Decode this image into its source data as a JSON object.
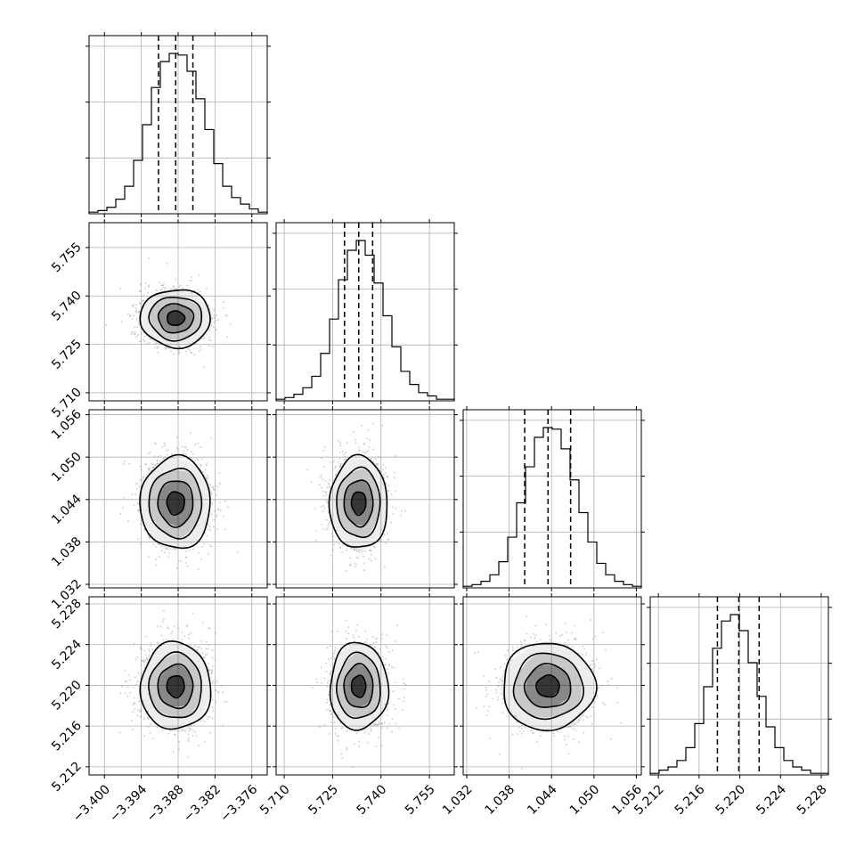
{
  "chart_data": {
    "type": "corner",
    "title": "",
    "grid": true,
    "params": [
      {
        "range": [
          -3.4025,
          -3.3735
        ],
        "ticks": [
          "−3.400",
          "−3.394",
          "−3.388",
          "−3.382",
          "−3.376"
        ],
        "tick_values": [
          -3.4,
          -3.394,
          -3.388,
          -3.382,
          -3.376
        ],
        "quantiles": [
          -3.3912,
          -3.3884,
          -3.3856
        ],
        "mean": -3.3884,
        "sd": 0.0028
      },
      {
        "range": [
          5.7075,
          5.7627
        ],
        "ticks": [
          "5.710",
          "5.725",
          "5.740",
          "5.755"
        ],
        "tick_values": [
          5.71,
          5.725,
          5.74,
          5.755
        ],
        "quantiles": [
          5.7287,
          5.7331,
          5.7374
        ],
        "mean": 5.7331,
        "sd": 0.0044
      },
      {
        "range": [
          1.0315,
          1.0567
        ],
        "ticks": [
          "1.032",
          "1.038",
          "1.044",
          "1.050",
          "1.056"
        ],
        "tick_values": [
          1.032,
          1.038,
          1.044,
          1.05,
          1.056
        ],
        "quantiles": [
          1.0402,
          1.0435,
          1.0467
        ],
        "mean": 1.0435,
        "sd": 0.0032
      },
      {
        "range": [
          5.2112,
          5.2287
        ],
        "ticks": [
          "5.212",
          "5.216",
          "5.220",
          "5.224",
          "5.228"
        ],
        "tick_values": [
          5.212,
          5.216,
          5.22,
          5.224,
          5.228
        ],
        "quantiles": [
          5.2178,
          5.2199,
          5.2219
        ],
        "mean": 5.2199,
        "sd": 0.0021
      }
    ],
    "histograms": [
      [
        1,
        2,
        4,
        9,
        17,
        33,
        55,
        78,
        94,
        99,
        98,
        88,
        71,
        52,
        31,
        17,
        10,
        6,
        3,
        1
      ],
      [
        1,
        2,
        4,
        8,
        15,
        29,
        50,
        74,
        92,
        98,
        89,
        72,
        52,
        33,
        18,
        10,
        5,
        3,
        1,
        1
      ],
      [
        1,
        2,
        4,
        8,
        16,
        31,
        52,
        74,
        92,
        98,
        97,
        85,
        66,
        46,
        28,
        15,
        8,
        4,
        2,
        1
      ],
      [
        1,
        3,
        5,
        9,
        17,
        32,
        55,
        79,
        96,
        100,
        90,
        70,
        49,
        30,
        17,
        9,
        5,
        3,
        1,
        1
      ]
    ],
    "contour_levels_sigma": [
      0.5,
      1.0,
      1.5,
      2.0
    ],
    "styles": {
      "line_color": "#000000",
      "grid_color": "#b0b0b0",
      "scatter_color": "#9e9e9e",
      "density_color": "#000000"
    }
  }
}
